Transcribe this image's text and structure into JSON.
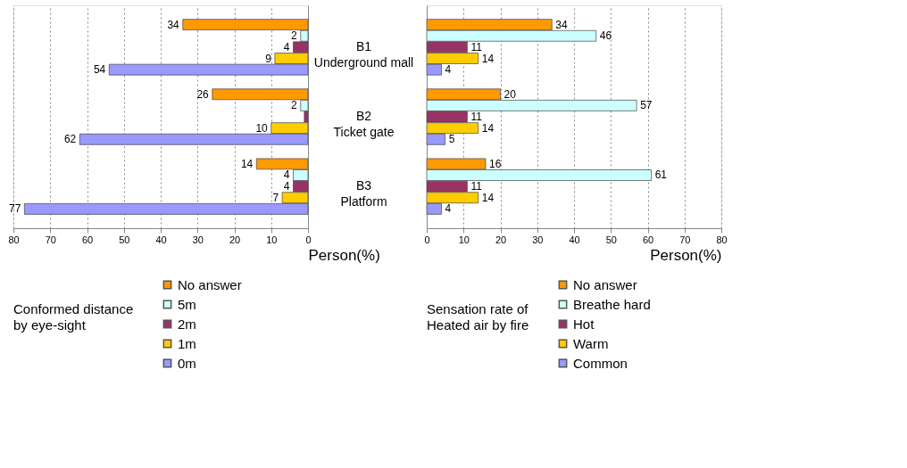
{
  "chart_data": [
    {
      "type": "bar",
      "orientation": "horizontal",
      "categories": [
        "B1 Underground mall",
        "B2 Ticket gate",
        "B3 Platform"
      ],
      "xlabel": "Person(%)",
      "legend_title": "Conformed distance by eye-sight",
      "legend": "bottom",
      "grid": "x",
      "xlim": [
        80,
        0
      ],
      "xticks": [
        80,
        70,
        60,
        50,
        40,
        30,
        20,
        10,
        0
      ],
      "series": [
        {
          "name": "No answer",
          "color": "#ff9900",
          "values": [
            34,
            26,
            14
          ],
          "value_labels": [
            "34",
            "26",
            "14"
          ]
        },
        {
          "name": "5m",
          "color": "#ccffff",
          "values": [
            2,
            2,
            4
          ],
          "value_labels": [
            "2",
            "2",
            "4"
          ]
        },
        {
          "name": "2m",
          "color": "#993366",
          "values": [
            4,
            1,
            4
          ],
          "value_labels": [
            "4",
            null,
            "4"
          ]
        },
        {
          "name": "1m",
          "color": "#ffcc00",
          "values": [
            9,
            10,
            7
          ],
          "value_labels": [
            "9",
            "10",
            "7"
          ]
        },
        {
          "name": "0m",
          "color": "#9999ff",
          "values": [
            54,
            62,
            77
          ],
          "value_labels": [
            "54",
            "62",
            "77"
          ]
        }
      ]
    },
    {
      "type": "bar",
      "orientation": "horizontal",
      "categories": [
        null,
        null,
        null
      ],
      "xlabel": "Person(%)",
      "legend_title": "Sensation rate of Heated air by fire",
      "legend": "bottom",
      "grid": "x",
      "tick_labels": "x",
      "xlim": [
        0,
        80
      ],
      "xticks": [
        0,
        10,
        20,
        30,
        40,
        50,
        60,
        70,
        80
      ],
      "series": [
        {
          "name": "No answer",
          "color": "#ff9900",
          "values": [
            34,
            20,
            16
          ],
          "value_labels": [
            "34",
            "20",
            "16"
          ]
        },
        {
          "name": "Breathe hard",
          "color": "#ccffff",
          "values": [
            46,
            57,
            61
          ],
          "value_labels": [
            "46",
            "57",
            "61"
          ]
        },
        {
          "name": "Hot",
          "color": "#993366",
          "values": [
            11,
            11,
            11
          ],
          "value_labels": [
            "11",
            "11",
            "11"
          ]
        },
        {
          "name": "Warm",
          "color": "#ffcc00",
          "values": [
            14,
            14,
            14
          ],
          "value_labels": [
            "14",
            "14",
            "14"
          ]
        },
        {
          "name": "Common",
          "color": "#9999ff",
          "values": [
            4,
            5,
            4
          ],
          "value_labels": [
            "4",
            "5",
            "4"
          ]
        }
      ]
    }
  ]
}
